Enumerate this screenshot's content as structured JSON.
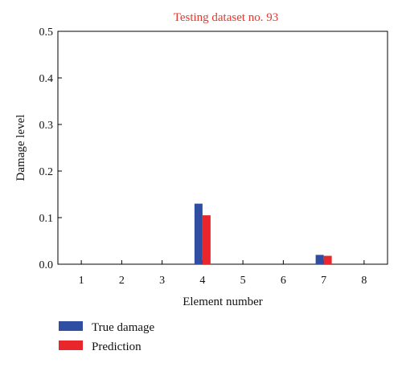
{
  "chart_data": {
    "type": "bar",
    "title": "Testing dataset no. 93",
    "xlabel": "Element number",
    "ylabel": "Damage level",
    "categories": [
      "1",
      "2",
      "3",
      "4",
      "5",
      "6",
      "7",
      "8"
    ],
    "series": [
      {
        "name": "True damage",
        "color": "#2f4ea2",
        "values": [
          0,
          0,
          0,
          0.13,
          0,
          0,
          0.02,
          0
        ]
      },
      {
        "name": "Prediction",
        "color": "#e8262b",
        "values": [
          0,
          0,
          0,
          0.105,
          0,
          0,
          0.018,
          0
        ]
      }
    ],
    "ylim": [
      0,
      0.5
    ],
    "yticks": [
      "0.0",
      "0.1",
      "0.2",
      "0.3",
      "0.4",
      "0.5"
    ],
    "grid": false,
    "legend_position": "bottom-left",
    "title_color": "#e8362b"
  }
}
